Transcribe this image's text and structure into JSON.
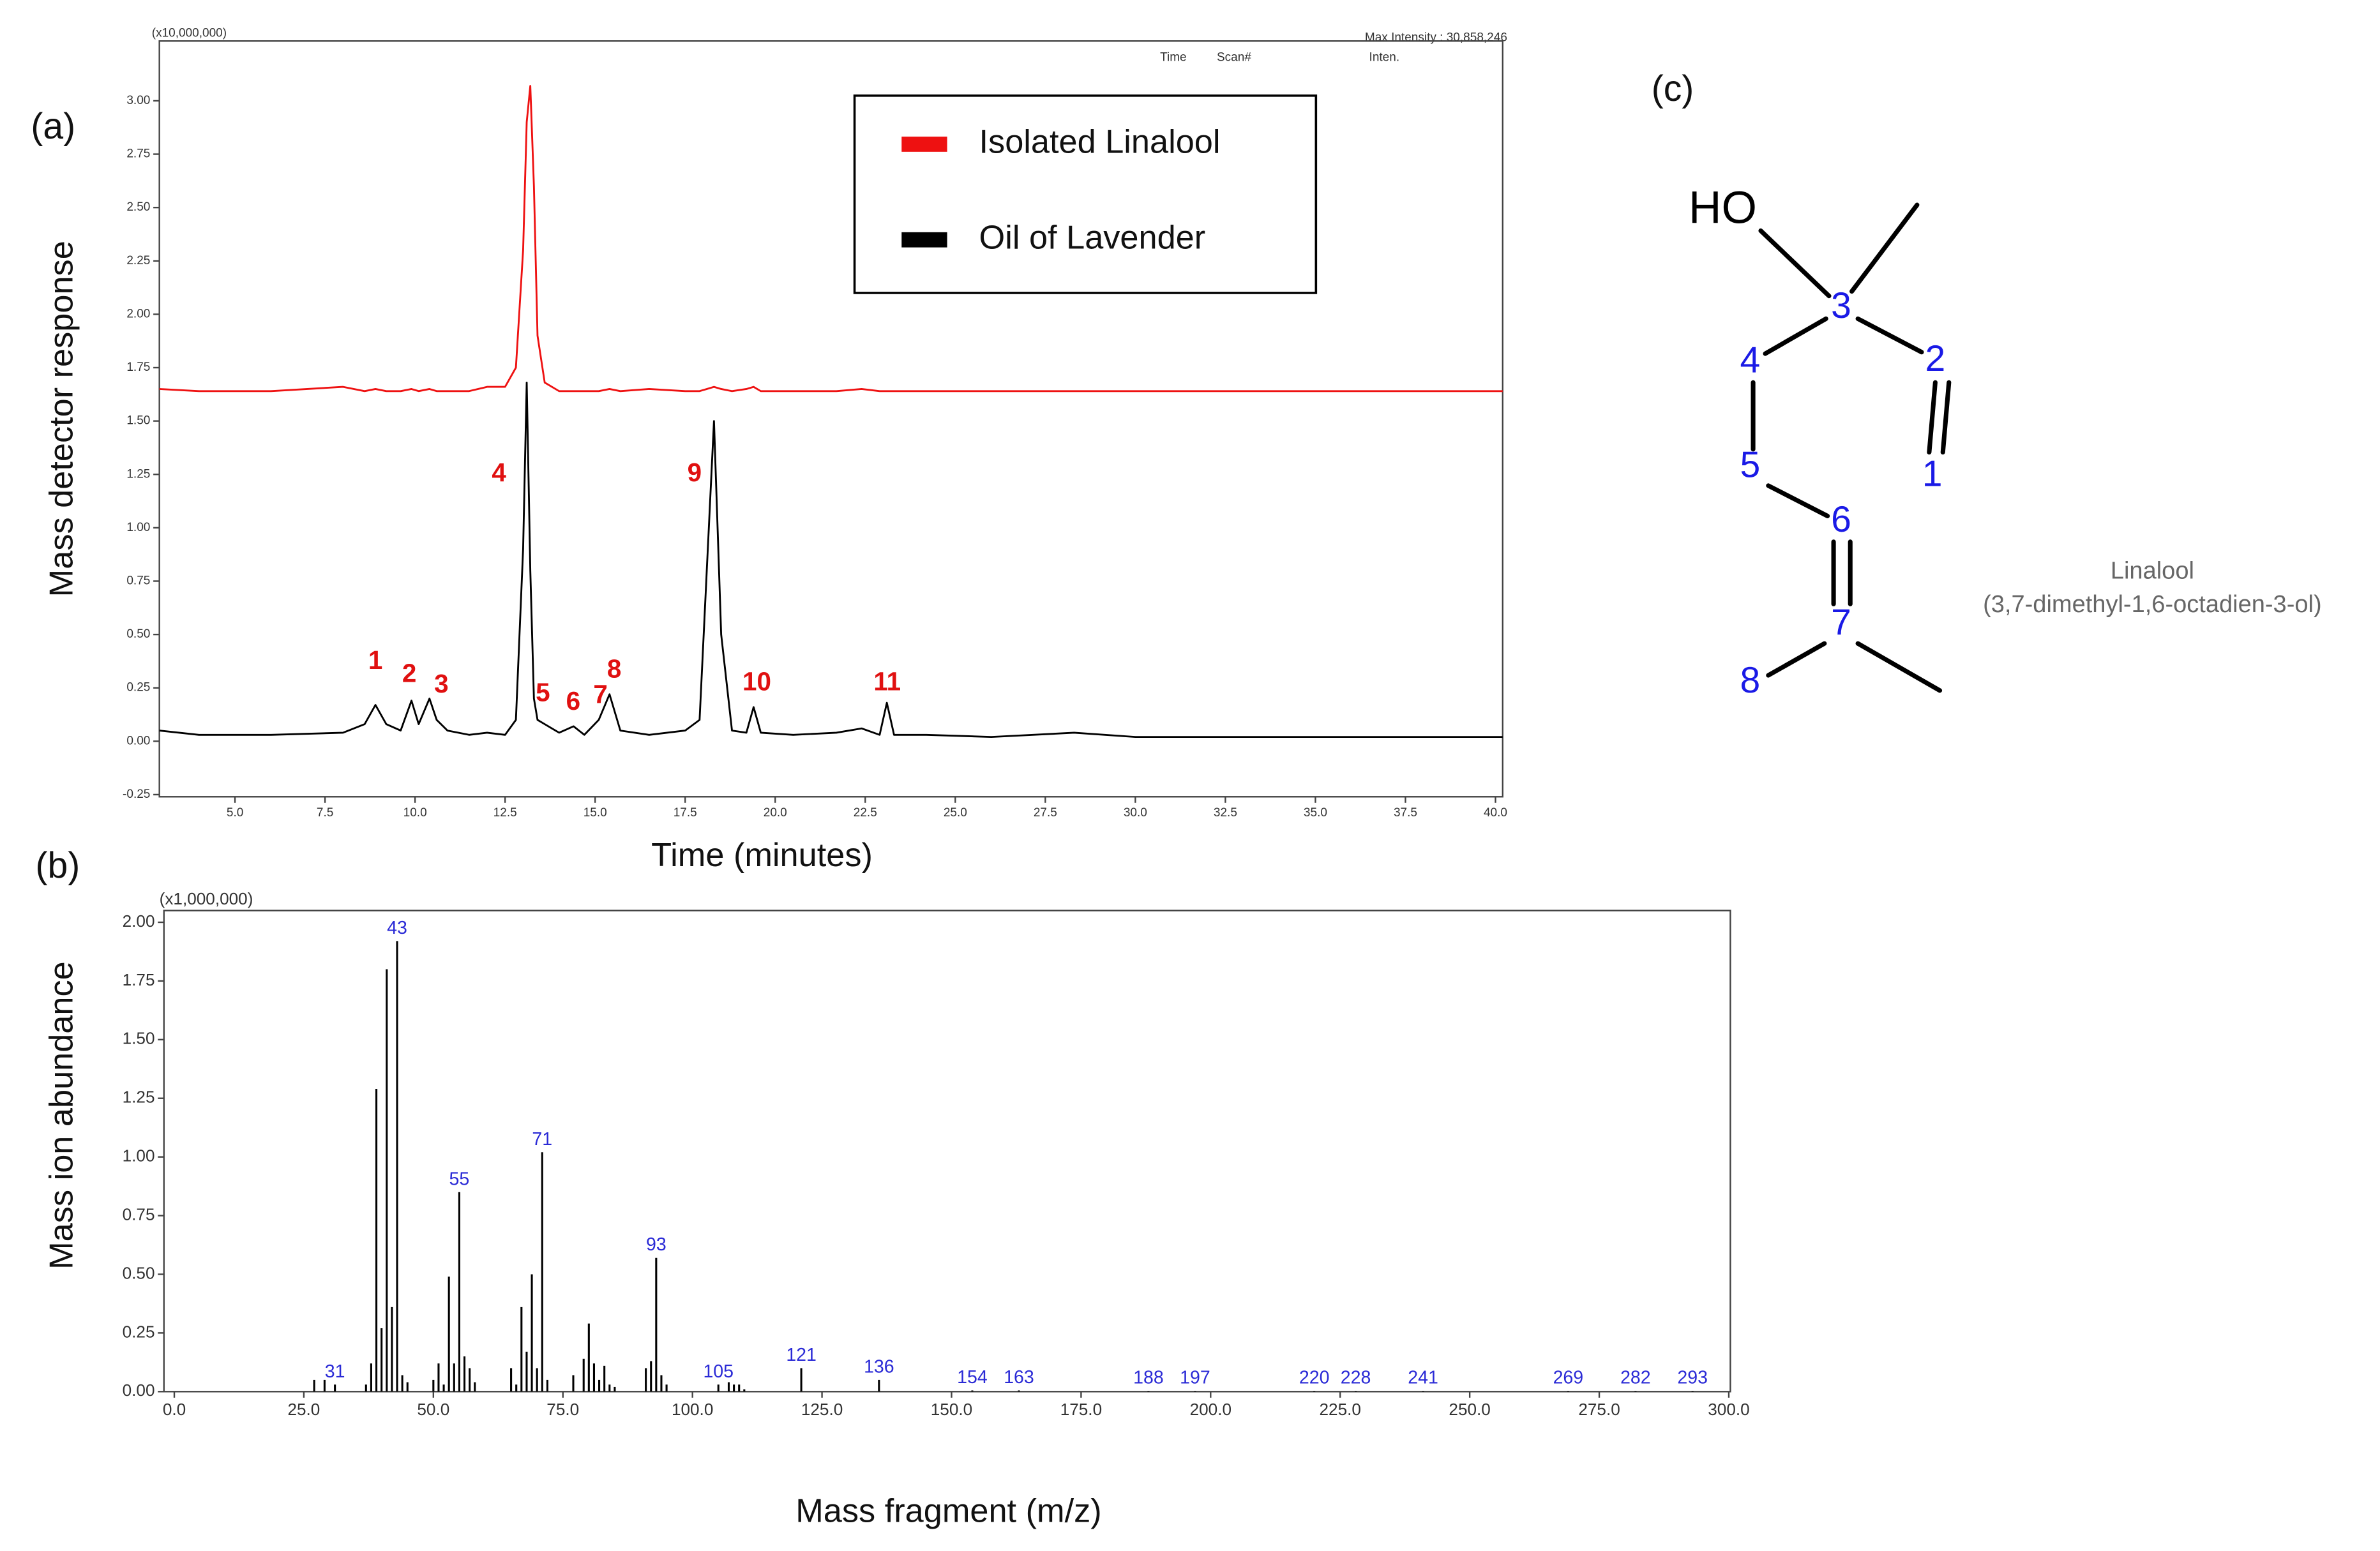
{
  "chart_data": [
    {
      "type": "line",
      "panel_label": "(a)",
      "scale_label": "(x10,000,000)",
      "max_intensity": "Max Intensity : 30,858,246",
      "column_headers": [
        "Time",
        "Scan#",
        "Inten."
      ],
      "x_label": "Time (minutes)",
      "y_label": "Mass detector response",
      "x": [
        2.9,
        4.0,
        6.0,
        8.0,
        8.6,
        8.9,
        9.2,
        9.6,
        9.9,
        10.1,
        10.4,
        10.6,
        10.9,
        11.5,
        12.0,
        12.5,
        12.8,
        13.0,
        13.1,
        13.2,
        13.3,
        13.4,
        13.6,
        14.0,
        14.4,
        14.7,
        15.1,
        15.4,
        15.7,
        16.5,
        17.5,
        17.9,
        18.1,
        18.3,
        18.5,
        18.8,
        19.2,
        19.4,
        19.6,
        20.5,
        21.7,
        22.4,
        22.9,
        23.1,
        23.3,
        24.2,
        26.0,
        28.3,
        30.0,
        34.0,
        38.0,
        40.0,
        40.2
      ],
      "series": [
        {
          "name": "Isolated Linalool",
          "color": "#ee1111",
          "values": [
            1.65,
            1.64,
            1.64,
            1.66,
            1.64,
            1.65,
            1.64,
            1.64,
            1.65,
            1.64,
            1.65,
            1.64,
            1.64,
            1.64,
            1.66,
            1.66,
            1.75,
            2.3,
            2.9,
            3.07,
            2.6,
            1.9,
            1.68,
            1.64,
            1.64,
            1.64,
            1.64,
            1.65,
            1.64,
            1.65,
            1.64,
            1.64,
            1.65,
            1.66,
            1.65,
            1.64,
            1.65,
            1.66,
            1.64,
            1.64,
            1.64,
            1.65,
            1.64,
            1.64,
            1.64,
            1.64,
            1.64,
            1.64,
            1.64,
            1.64,
            1.64,
            1.64,
            1.64
          ]
        },
        {
          "name": "Oil of Lavender",
          "color": "#000000",
          "values": [
            0.05,
            0.03,
            0.03,
            0.04,
            0.08,
            0.17,
            0.08,
            0.05,
            0.19,
            0.08,
            0.2,
            0.1,
            0.05,
            0.03,
            0.04,
            0.03,
            0.1,
            0.9,
            1.68,
            0.8,
            0.2,
            0.1,
            0.08,
            0.04,
            0.07,
            0.03,
            0.1,
            0.22,
            0.05,
            0.03,
            0.05,
            0.1,
            0.8,
            1.5,
            0.5,
            0.05,
            0.04,
            0.16,
            0.04,
            0.03,
            0.04,
            0.06,
            0.03,
            0.18,
            0.03,
            0.03,
            0.02,
            0.04,
            0.02,
            0.02,
            0.02,
            0.02,
            0.02
          ]
        }
      ],
      "annotations": [
        {
          "text": "1",
          "x": 8.9,
          "y": 0.37
        },
        {
          "text": "2",
          "x": 9.84,
          "y": 0.31
        },
        {
          "text": "3",
          "x": 10.73,
          "y": 0.26
        },
        {
          "text": "4",
          "x": 12.33,
          "y": 1.25
        },
        {
          "text": "5",
          "x": 13.55,
          "y": 0.22
        },
        {
          "text": "6",
          "x": 14.39,
          "y": 0.18
        },
        {
          "text": "7",
          "x": 15.15,
          "y": 0.21
        },
        {
          "text": "8",
          "x": 15.53,
          "y": 0.33
        },
        {
          "text": "9",
          "x": 17.76,
          "y": 1.25
        },
        {
          "text": "10",
          "x": 19.49,
          "y": 0.27
        },
        {
          "text": "11",
          "x": 23.11,
          "y": 0.27
        }
      ],
      "xlim": [
        2.9,
        40.2
      ],
      "ylim": [
        -0.26,
        3.28
      ],
      "xticks": [
        {
          "value": 5,
          "label": "5.0"
        },
        7.5,
        {
          "value": 10,
          "label": "10.0"
        },
        12.5,
        {
          "value": 15,
          "label": "15.0"
        },
        17.5,
        {
          "value": 20,
          "label": "20.0"
        },
        22.5,
        {
          "value": 25,
          "label": "25.0"
        },
        27.5,
        {
          "value": 30,
          "label": "30.0"
        },
        32.5,
        {
          "value": 35,
          "label": "35.0"
        },
        37.5,
        {
          "value": 40,
          "label": "40.0"
        }
      ],
      "yticks": [
        -0.25,
        {
          "value": 0,
          "label": "0.00"
        },
        0.25,
        {
          "value": 0.5,
          "label": "0.50"
        },
        0.75,
        {
          "value": 1,
          "label": "1.00"
        },
        1.25,
        {
          "value": 1.5,
          "label": "1.50"
        },
        1.75,
        {
          "value": 2,
          "label": "2.00"
        },
        2.25,
        {
          "value": 2.5,
          "label": "2.50"
        },
        2.75,
        {
          "value": 3,
          "label": "3.00"
        }
      ],
      "legend": "upper center",
      "grid": false
    },
    {
      "type": "bar",
      "panel_label": "(b)",
      "scale_label": "(x1,000,000)",
      "x_label": "Mass fragment (m/z)",
      "y_label": "Mass ion abundance",
      "color": "#000000",
      "x": [
        27,
        29,
        31,
        37,
        38,
        39,
        40,
        41,
        42,
        43,
        44,
        45,
        50,
        51,
        52,
        53,
        54,
        55,
        56,
        57,
        58,
        65,
        66,
        67,
        68,
        69,
        70,
        71,
        72,
        77,
        79,
        80,
        81,
        82,
        83,
        84,
        85,
        91,
        92,
        93,
        94,
        95,
        105,
        107,
        108,
        109,
        110,
        121,
        136,
        154,
        163,
        188,
        197,
        220,
        228,
        241,
        269,
        282,
        293
      ],
      "values": [
        0.05,
        0.05,
        0.03,
        0.03,
        0.12,
        1.29,
        0.27,
        1.8,
        0.36,
        1.92,
        0.07,
        0.04,
        0.05,
        0.12,
        0.03,
        0.49,
        0.12,
        0.85,
        0.15,
        0.1,
        0.04,
        0.1,
        0.03,
        0.36,
        0.17,
        0.5,
        0.1,
        1.02,
        0.05,
        0.07,
        0.14,
        0.29,
        0.12,
        0.05,
        0.11,
        0.03,
        0.02,
        0.1,
        0.13,
        0.57,
        0.07,
        0.03,
        0.03,
        0.04,
        0.03,
        0.03,
        0.01,
        0.1,
        0.05,
        0.005,
        0.005,
        0.003,
        0.003,
        0.003,
        0.003,
        0.003,
        0.003,
        0.003,
        0.003
      ],
      "peak_labels": [
        31,
        43,
        55,
        71,
        93,
        105,
        121,
        136,
        154,
        163,
        188,
        197,
        220,
        228,
        241,
        269,
        282,
        293
      ],
      "xlim": [
        -2,
        300.3
      ],
      "ylim": [
        0,
        2.05
      ],
      "xticks": [
        {
          "value": 0,
          "label": "0.0"
        },
        {
          "value": 25,
          "label": "25.0"
        },
        {
          "value": 50,
          "label": "50.0"
        },
        {
          "value": 75,
          "label": "75.0"
        },
        {
          "value": 100,
          "label": "100.0"
        },
        {
          "value": 125,
          "label": "125.0"
        },
        {
          "value": 150,
          "label": "150.0"
        },
        {
          "value": 175,
          "label": "175.0"
        },
        {
          "value": 200,
          "label": "200.0"
        },
        {
          "value": 225,
          "label": "225.0"
        },
        {
          "value": 250,
          "label": "250.0"
        },
        {
          "value": 275,
          "label": "275.0"
        },
        {
          "value": 300,
          "label": "300.0"
        }
      ],
      "yticks": [
        {
          "value": 0,
          "label": "0.00"
        },
        0.25,
        {
          "value": 0.5,
          "label": "0.50"
        },
        0.75,
        {
          "value": 1,
          "label": "1.00"
        },
        1.25,
        {
          "value": 1.5,
          "label": "1.50"
        },
        1.75,
        {
          "value": 2,
          "label": "2.00"
        }
      ],
      "grid": false
    }
  ],
  "structure": {
    "panel_label": "(c)",
    "atoms": [
      "HO",
      "3",
      "2",
      "1",
      "4",
      "5",
      "6",
      "7",
      "8"
    ],
    "name": "Linalool",
    "iupac": "(3,7-dimethyl-1,6-octadien-3-ol)"
  }
}
